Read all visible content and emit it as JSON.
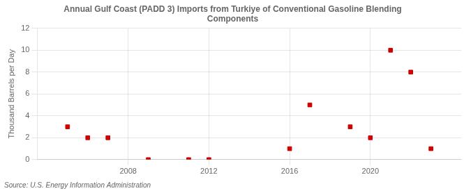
{
  "chart_data": {
    "type": "scatter",
    "title": "Annual Gulf Coast (PADD 3) Imports from Turkiye of Conventional Gasoline Blending\nComponents",
    "ylabel": "Thousand Barrels per Day",
    "annotations": [
      "Source: U.S. Energy Information Administration"
    ],
    "x": [
      2005,
      2006,
      2007,
      2009,
      2011,
      2012,
      2016,
      2017,
      2019,
      2020,
      2021,
      2022,
      2023
    ],
    "values": [
      3,
      2,
      2,
      0,
      0,
      0,
      1,
      5,
      3,
      2,
      10,
      8,
      1
    ],
    "color": "#cc0000",
    "marker": "square",
    "xlim": [
      2003.5,
      2024.5
    ],
    "xticks": [
      2008,
      2012,
      2016,
      2020
    ],
    "ylim": [
      0,
      12
    ],
    "yticks": [
      0,
      2,
      4,
      6,
      8,
      10,
      12
    ],
    "grid": true
  }
}
